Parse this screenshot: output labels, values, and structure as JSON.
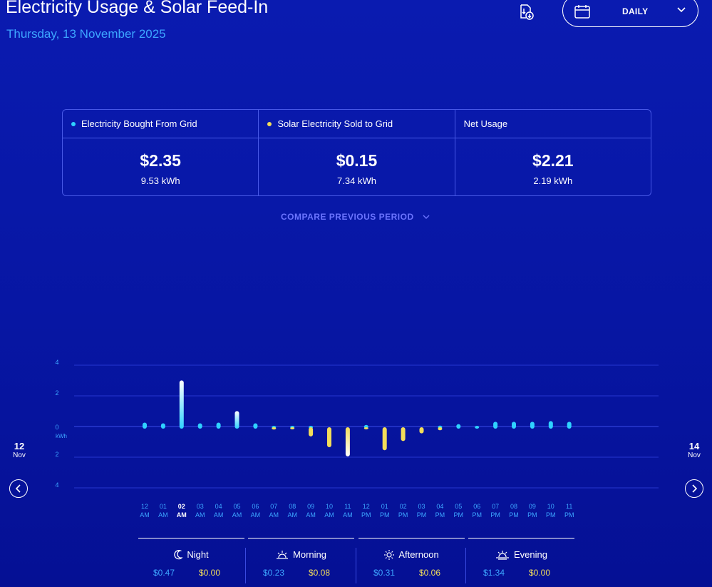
{
  "header": {
    "title": "Electricity Usage & Solar Feed-In",
    "date": "Thursday, 13 November 2025",
    "period_label": "DAILY",
    "download_icon": "download-report-icon",
    "calendar_icon": "calendar-icon"
  },
  "summary": [
    {
      "label": "Electricity Bought From Grid",
      "amount": "$2.35",
      "kwh": "9.53 kWh",
      "dot_color": "#2fd2ff"
    },
    {
      "label": "Solar Electricity Sold to Grid",
      "amount": "$0.15",
      "kwh": "7.34 kWh",
      "dot_color": "#f2dd5a"
    },
    {
      "label": "Net Usage",
      "amount": "$2.21",
      "kwh": "2.19 kWh",
      "dot_color": ""
    }
  ],
  "compare_label": "COMPARE PREVIOUS PERIOD",
  "nav": {
    "prev_day": "12",
    "prev_month": "Nov",
    "next_day": "14",
    "next_month": "Nov"
  },
  "colors": {
    "bought": "#2fd2ff",
    "sold": "#f2dd5a",
    "axis_label": "#3da6ff"
  },
  "chart_data": {
    "type": "bar",
    "ylabel": "kWh",
    "y_ticks": [
      "4",
      "2",
      "0",
      "2",
      "4"
    ],
    "ylim": [
      -4,
      4
    ],
    "categories": [
      [
        "12",
        "AM"
      ],
      [
        "01",
        "AM"
      ],
      [
        "02",
        "AM"
      ],
      [
        "03",
        "AM"
      ],
      [
        "04",
        "AM"
      ],
      [
        "05",
        "AM"
      ],
      [
        "06",
        "AM"
      ],
      [
        "07",
        "AM"
      ],
      [
        "08",
        "AM"
      ],
      [
        "09",
        "AM"
      ],
      [
        "10",
        "AM"
      ],
      [
        "11",
        "AM"
      ],
      [
        "12",
        "PM"
      ],
      [
        "01",
        "PM"
      ],
      [
        "02",
        "PM"
      ],
      [
        "03",
        "PM"
      ],
      [
        "04",
        "PM"
      ],
      [
        "05",
        "PM"
      ],
      [
        "06",
        "PM"
      ],
      [
        "07",
        "PM"
      ],
      [
        "08",
        "PM"
      ],
      [
        "09",
        "PM"
      ],
      [
        "10",
        "PM"
      ],
      [
        "11",
        "PM"
      ]
    ],
    "highlighted_category": 2,
    "series": [
      {
        "name": "Electricity Bought From Grid",
        "values": [
          0.35,
          0.3,
          3.1,
          0.3,
          0.35,
          1.1,
          0.3,
          0.05,
          0.05,
          0.05,
          0,
          0,
          0.2,
          0,
          0,
          0,
          0.15,
          0.25,
          0.1,
          0.4,
          0.4,
          0.4,
          0.45,
          0.4
        ]
      },
      {
        "name": "Solar Electricity Sold to Grid",
        "values": [
          0,
          0,
          0,
          0,
          0,
          0,
          0,
          -0.15,
          -0.1,
          -0.6,
          -1.3,
          -1.9,
          -0.05,
          -1.5,
          -0.9,
          -0.4,
          -0.2,
          0,
          0,
          0,
          0,
          0,
          0,
          0
        ]
      }
    ]
  },
  "time_periods": [
    {
      "name": "Night",
      "icon": "moon-icon",
      "bought": "$0.47",
      "sold": "$0.00"
    },
    {
      "name": "Morning",
      "icon": "sunrise-icon",
      "bought": "$0.23",
      "sold": "$0.08"
    },
    {
      "name": "Afternoon",
      "icon": "sun-icon",
      "bought": "$0.31",
      "sold": "$0.06"
    },
    {
      "name": "Evening",
      "icon": "sunset-icon",
      "bought": "$1.34",
      "sold": "$0.00"
    }
  ]
}
